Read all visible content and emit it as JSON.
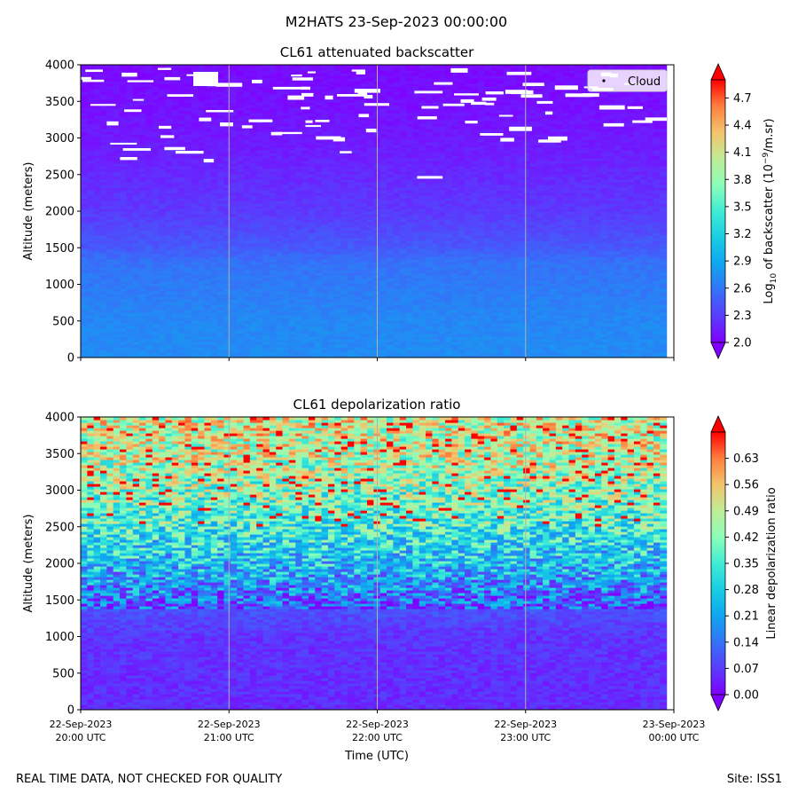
{
  "chart_data": {
    "suptitle": "M2HATS 23-Sep-2023 00:00:00",
    "footer_left": "REAL TIME DATA, NOT CHECKED FOR QUALITY",
    "footer_right": "Site: ISS1",
    "panels": [
      {
        "type": "heatmap",
        "title": "CL61 attenuated backscatter",
        "ylabel": "Altitude (meters)",
        "ylim": [
          0,
          4000
        ],
        "yticks": [
          0,
          500,
          1000,
          1500,
          2000,
          2500,
          3000,
          3500,
          4000
        ],
        "legend": {
          "label": "Cloud",
          "placement": "top-right"
        },
        "colorbar": {
          "label_prefix": "Log",
          "label_sub": "10",
          "label_mid": " of backscatter (10",
          "label_sup": "−9",
          "label_suffix": "/m.sr)",
          "range": [
            2.0,
            4.9
          ],
          "ticks": [
            "2.0",
            "2.3",
            "2.6",
            "2.9",
            "3.2",
            "3.5",
            "3.8",
            "4.1",
            "4.4",
            "4.7"
          ],
          "extend": "both"
        },
        "profile": [
          {
            "altitude": 0,
            "value": 2.72
          },
          {
            "altitude": 500,
            "value": 2.7
          },
          {
            "altitude": 1000,
            "value": 2.62
          },
          {
            "altitude": 1300,
            "value": 2.58
          },
          {
            "altitude": 1500,
            "value": 2.45
          },
          {
            "altitude": 2000,
            "value": 2.28
          },
          {
            "altitude": 2500,
            "value": 2.2
          },
          {
            "altitude": 3000,
            "value": 2.12
          },
          {
            "altitude": 3500,
            "value": 2.08
          },
          {
            "altitude": 4000,
            "value": 2.05
          }
        ],
        "cloud_band": [
          2400,
          4000
        ]
      },
      {
        "type": "heatmap",
        "title": "CL61 depolarization ratio",
        "ylabel": "Altitude (meters)",
        "ylim": [
          0,
          4000
        ],
        "yticks": [
          0,
          500,
          1000,
          1500,
          2000,
          2500,
          3000,
          3500,
          4000
        ],
        "colorbar": {
          "label": "Linear depolarization ratio",
          "range": [
            0.0,
            0.7
          ],
          "ticks": [
            "0.00",
            "0.07",
            "0.14",
            "0.21",
            "0.28",
            "0.35",
            "0.42",
            "0.49",
            "0.56",
            "0.63"
          ],
          "extend": "both"
        },
        "profile": [
          {
            "altitude": 0,
            "value": 0.05
          },
          {
            "altitude": 1000,
            "value": 0.06
          },
          {
            "altitude": 1400,
            "value": 0.1
          },
          {
            "altitude": 1700,
            "value": 0.18
          },
          {
            "altitude": 2000,
            "value": 0.25
          },
          {
            "altitude": 2500,
            "value": 0.35
          },
          {
            "altitude": 3000,
            "value": 0.42
          },
          {
            "altitude": 3500,
            "value": 0.48
          },
          {
            "altitude": 4000,
            "value": 0.5
          }
        ]
      }
    ],
    "xlabel": "Time (UTC)",
    "xticks": [
      {
        "line1": "22-Sep-2023",
        "line2": "20:00 UTC",
        "hour": 0
      },
      {
        "line1": "22-Sep-2023",
        "line2": "21:00 UTC",
        "hour": 1
      },
      {
        "line1": "22-Sep-2023",
        "line2": "22:00 UTC",
        "hour": 2
      },
      {
        "line1": "22-Sep-2023",
        "line2": "23:00 UTC",
        "hour": 3
      },
      {
        "line1": "23-Sep-2023",
        "line2": "00:00 UTC",
        "hour": 4
      }
    ],
    "data_end_hour": 3.95
  }
}
